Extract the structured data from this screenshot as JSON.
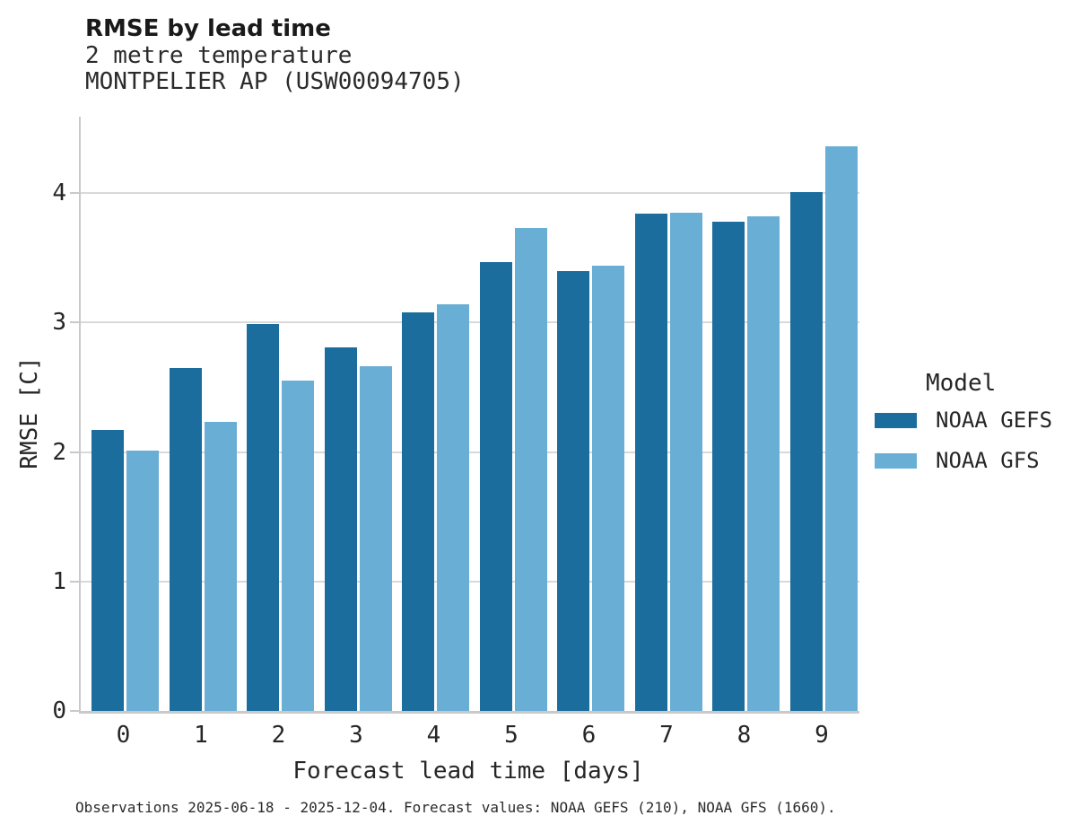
{
  "header": {
    "title": "RMSE by lead time",
    "subtitle_line1": "2 metre temperature",
    "subtitle_line2": "MONTPELIER AP (USW00094705)"
  },
  "chart_data": {
    "type": "bar",
    "categories": [
      "0",
      "1",
      "2",
      "3",
      "4",
      "5",
      "6",
      "7",
      "8",
      "9"
    ],
    "series": [
      {
        "name": "NOAA GEFS",
        "color": "#1B6D9D",
        "values": [
          2.17,
          2.65,
          2.99,
          2.81,
          3.08,
          3.47,
          3.4,
          3.84,
          3.78,
          4.01
        ]
      },
      {
        "name": "NOAA GFS",
        "color": "#69AED5",
        "values": [
          2.01,
          2.23,
          2.55,
          2.66,
          3.14,
          3.73,
          3.44,
          3.85,
          3.82,
          4.36
        ]
      }
    ],
    "title": "RMSE by lead time",
    "xlabel": "Forecast lead time [days]",
    "ylabel": "RMSE [C]",
    "ylim": [
      0,
      4.59
    ],
    "yticks": [
      "0",
      "1",
      "2",
      "3",
      "4"
    ],
    "grid": "horizontal-only",
    "legend_position": "right-outside"
  },
  "legend": {
    "title": "Model"
  },
  "colors": {
    "series_dark": "#1B6D9D",
    "series_light": "#69AED5",
    "gridline": "#d9d9d9",
    "spine": "#c9c9c9"
  },
  "caption": "Observations 2025-06-18 - 2025-12-04. Forecast values: NOAA GEFS (210), NOAA GFS (1660)."
}
